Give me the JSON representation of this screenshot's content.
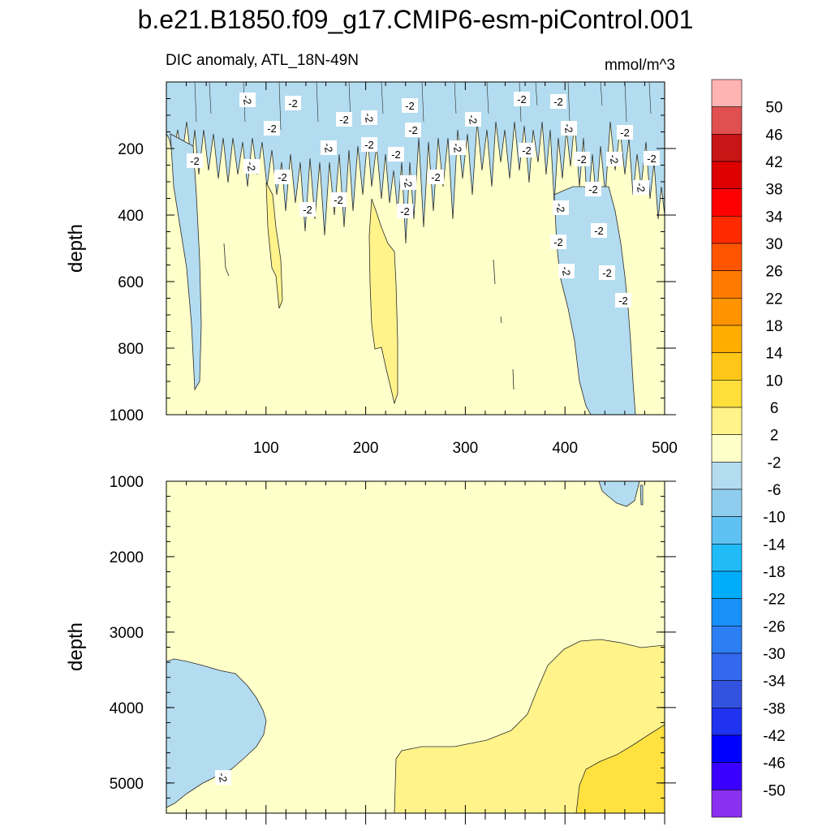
{
  "chart_data": {
    "type": "heatmap",
    "title": "b.e21.B1850.f09_g17.CMIP6-esm-piControl.001",
    "variable": "DIC anomaly, ATL_18N-49N",
    "units": "mmol/m^3",
    "x_ticks": [
      "100",
      "200",
      "300",
      "400",
      "500"
    ],
    "x_range": [
      0,
      500
    ],
    "panels": [
      {
        "name": "upper",
        "ylabel": "depth",
        "ylim": [
          0,
          1000
        ],
        "y_ticks": [
          "200",
          "400",
          "600",
          "800",
          "1000"
        ],
        "regions": [
          {
            "level": "-2",
            "desc": "negative anomaly band, upper 100-450 m across all times"
          },
          {
            "level": "2",
            "desc": "positive anomaly plume near x=210-230 down to ~950 m"
          },
          {
            "level": "-2",
            "desc": "negative anomaly column x=410-470 from 400 m to 1000 m"
          }
        ],
        "contour_labels": [
          "-2",
          "-2",
          "-2",
          "-2",
          "-2",
          "-2",
          "-2",
          "-2",
          "-2",
          "-2",
          "-2",
          "-2",
          "-2",
          "-2",
          "-2",
          "-2",
          "-2",
          "-2",
          "-2",
          "-2",
          "-2",
          "-2",
          "-2",
          "-2",
          "-2",
          "-2",
          "-2",
          "-2",
          "-2",
          "-2",
          "-2",
          "-2",
          "-2",
          "-2",
          "-2",
          "-2"
        ]
      },
      {
        "name": "lower",
        "ylabel": "depth",
        "ylim": [
          1000,
          5400
        ],
        "y_ticks": [
          "1000",
          "2000",
          "3000",
          "4000",
          "5000"
        ],
        "regions": [
          {
            "level": "-2",
            "desc": "negative anomaly x=0-100, 3300-5200 m"
          },
          {
            "level": "2",
            "desc": "positive anomaly growing from x=230 to 500 below 3100 m"
          },
          {
            "level": "6",
            "desc": "stronger positive anomaly x=410-500 below 4200 m"
          },
          {
            "level": "-2",
            "desc": "small negative patch near x=430-470 at 1000-1300 m"
          }
        ],
        "contour_labels": [
          "-2"
        ]
      }
    ],
    "colorbar": {
      "labels": [
        "50",
        "46",
        "42",
        "38",
        "34",
        "30",
        "26",
        "22",
        "18",
        "14",
        "10",
        "6",
        "2",
        "-2",
        "-6",
        "-10",
        "-14",
        "-18",
        "-22",
        "-26",
        "-30",
        "-34",
        "-38",
        "-42",
        "-46",
        "-50"
      ],
      "colors": [
        "#ffb3b3",
        "#e05050",
        "#c81515",
        "#dd0000",
        "#ff0000",
        "#ff2a00",
        "#ff5500",
        "#ff7a00",
        "#ff9400",
        "#ffae00",
        "#ffc61a",
        "#ffde3c",
        "#fff38a",
        "#ffffc9",
        "#b3dcf0",
        "#8fcdee",
        "#5ec1f2",
        "#21bcf8",
        "#00adfb",
        "#1891f8",
        "#2c7ff3",
        "#3468ee",
        "#3352e0",
        "#2033f0",
        "#0000ff",
        "#3900ff",
        "#8a30f0"
      ]
    }
  }
}
